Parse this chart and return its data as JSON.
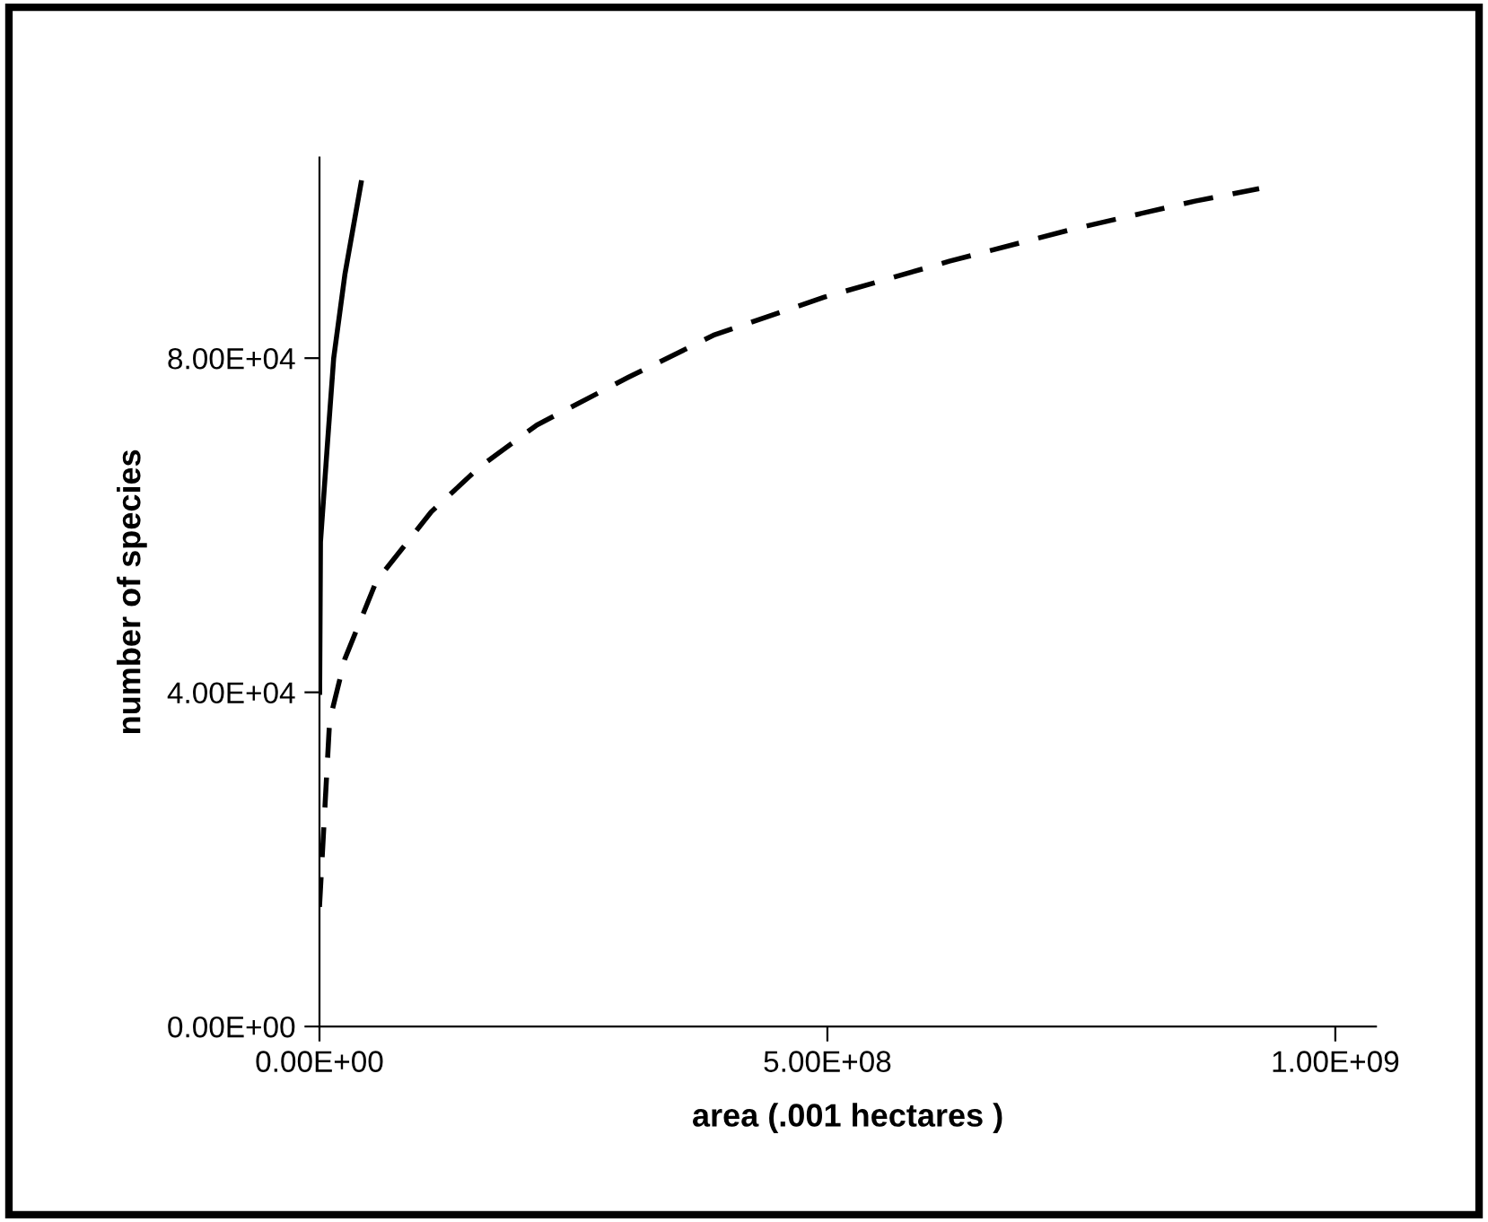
{
  "chart_data": {
    "type": "line",
    "xlabel": "area (.001 hectares )",
    "ylabel": "number of species",
    "xlim": [
      0,
      1040000000
    ],
    "ylim": [
      0,
      104000
    ],
    "xticks": [
      {
        "value": 0,
        "label": "0.00E+00"
      },
      {
        "value": 500000000,
        "label": "5.00E+08"
      },
      {
        "value": 1000000000,
        "label": "1.00E+09"
      }
    ],
    "yticks": [
      {
        "value": 0,
        "label": "0.00E+00"
      },
      {
        "value": 40000,
        "label": "4.00E+04"
      },
      {
        "value": 80000,
        "label": "8.00E+04"
      }
    ],
    "grid": false,
    "legend": false,
    "marker": "none",
    "series": [
      {
        "color": "#000000",
        "line_style": "solid",
        "x": [
          200000,
          1000000,
          8000000,
          14000000,
          25000000,
          41000000
        ],
        "values": [
          40000,
          58000,
          70000,
          80000,
          90000,
          101000
        ]
      },
      {
        "color": "#000000",
        "line_style": "dashed",
        "x": [
          0,
          10000000,
          25000000,
          56000000,
          110000000,
          158000000,
          214000000,
          304000000,
          389000000,
          497000000,
          620000000,
          740000000,
          862000000,
          925000000
        ],
        "values": [
          14300,
          36600,
          44000,
          53300,
          61600,
          67000,
          72000,
          77700,
          82800,
          87300,
          91600,
          95400,
          98800,
          100300
        ]
      }
    ]
  }
}
